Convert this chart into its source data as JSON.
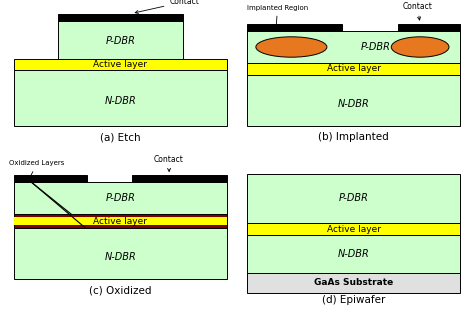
{
  "fig_width": 4.74,
  "fig_height": 3.11,
  "bg_color": "#ffffff",
  "light_green": "#ccffcc",
  "yellow": "#ffff00",
  "black": "#000000",
  "dark_red": "#800000",
  "orange": "#e87820",
  "gray_light": "#e0e0e0",
  "subtitle_a": "(a) Etch",
  "subtitle_b": "(b) Implanted",
  "subtitle_c": "(c) Oxidized",
  "subtitle_d": "(d) Epiwafer",
  "label_pdbr": "P-DBR",
  "label_ndbr": "N-DBR",
  "label_active": "Active layer",
  "label_gaas": "GaAs Substrate",
  "label_contact": "Contact",
  "label_implanted": "Implanted Region",
  "label_oxidized": "Oxidized Layers"
}
